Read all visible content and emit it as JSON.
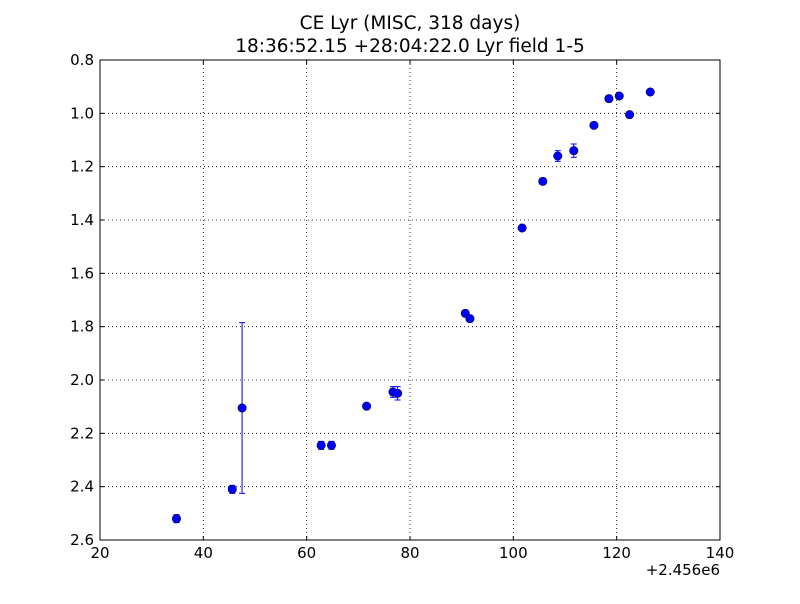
{
  "chart_data": {
    "type": "scatter",
    "title": "CE Lyr (MISC, 318 days)",
    "subtitle": "18:36:52.15 +28:04:22.0 Lyr field 1-5",
    "xlabel": "",
    "ylabel": "",
    "x_offset_label": "+2.456e6",
    "xlim": [
      20,
      140
    ],
    "ylim": [
      2.6,
      0.8
    ],
    "y_inverted": true,
    "xticks": [
      "20",
      "40",
      "60",
      "80",
      "100",
      "120",
      "140"
    ],
    "yticks": [
      "0.8",
      "1.0",
      "1.2",
      "1.4",
      "1.6",
      "1.8",
      "2.0",
      "2.2",
      "2.4",
      "2.6"
    ],
    "grid": true,
    "marker_color": "#0000ff",
    "points": [
      {
        "x": 34.8,
        "y": 2.52,
        "err": 0.015
      },
      {
        "x": 45.6,
        "y": 2.41,
        "err": 0.015
      },
      {
        "x": 47.5,
        "y": 2.105,
        "err": 0.32
      },
      {
        "x": 62.8,
        "y": 2.245,
        "err": 0.015
      },
      {
        "x": 64.8,
        "y": 2.245,
        "err": 0.015
      },
      {
        "x": 71.6,
        "y": 2.098,
        "err": 0.01
      },
      {
        "x": 76.7,
        "y": 2.045,
        "err": 0.02
      },
      {
        "x": 77.6,
        "y": 2.05,
        "err": 0.025
      },
      {
        "x": 90.7,
        "y": 1.75,
        "err": 0.012
      },
      {
        "x": 91.6,
        "y": 1.77,
        "err": 0.012
      },
      {
        "x": 101.7,
        "y": 1.43,
        "err": 0.01
      },
      {
        "x": 105.7,
        "y": 1.255,
        "err": 0.012
      },
      {
        "x": 108.6,
        "y": 1.16,
        "err": 0.02
      },
      {
        "x": 111.7,
        "y": 1.14,
        "err": 0.025
      },
      {
        "x": 115.6,
        "y": 1.045,
        "err": 0.01
      },
      {
        "x": 118.5,
        "y": 0.945,
        "err": 0.012
      },
      {
        "x": 120.5,
        "y": 0.935,
        "err": 0.01
      },
      {
        "x": 122.5,
        "y": 1.005,
        "err": 0.01
      },
      {
        "x": 126.5,
        "y": 0.92,
        "err": 0.01
      }
    ]
  }
}
